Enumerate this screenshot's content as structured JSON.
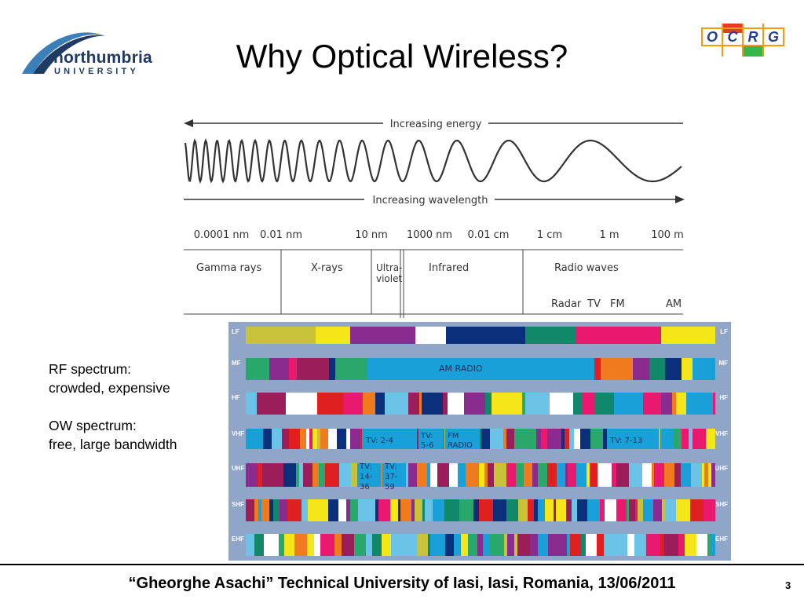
{
  "slide": {
    "title": "Why Optical Wireless?",
    "page_number": "3",
    "footer": "“Gheorghe Asachi” Technical University of Iasi, Iasi, Romania, 13/06/2011"
  },
  "logos": {
    "northumbria": {
      "name": "northumbria",
      "sub": "UNIVERSITY"
    },
    "ocrg": {
      "letters": [
        "O",
        "C",
        "R",
        "G"
      ]
    }
  },
  "notes": {
    "rf_line1": "RF spectrum:",
    "rf_line2": "crowded, expensive",
    "ow_line1": "OW spectrum:",
    "ow_line2": "free, large bandwidth"
  },
  "spectrum": {
    "energy_label": "Increasing energy",
    "wavelength_label": "Increasing wavelength",
    "wavelengths": [
      "0.0001 nm",
      "0.01 nm",
      "10 nm",
      "1000 nm",
      "0.01 cm",
      "1 cm",
      "1 m",
      "100 m"
    ],
    "regions": [
      "Gamma rays",
      "X-rays",
      "Ultra-",
      "violet",
      "Infrared",
      "Radio waves"
    ],
    "radio_sub": [
      "Radar",
      "TV",
      "FM",
      "AM"
    ]
  },
  "rf_chart": {
    "bands": [
      "LF",
      "MF",
      "HF",
      "VHF",
      "UHF",
      "SHF",
      "EHF"
    ],
    "labels": {
      "am_radio": "AM RADIO",
      "tv_2_4": "TV: 2-4",
      "tv_5": "TV:",
      "tv_5b": "5-6",
      "fm": "FM",
      "fm_b": "RADIO",
      "tv_7_13": "TV: 7-13",
      "tv_14": "TV:",
      "tv_14b": "14-",
      "tv_14c": "36",
      "tv_37": "TV:",
      "tv_37b": "37-",
      "tv_37c": "59"
    }
  },
  "colors": {
    "navy": "#1f3b63",
    "chart_bg": "#8fa6c8"
  }
}
